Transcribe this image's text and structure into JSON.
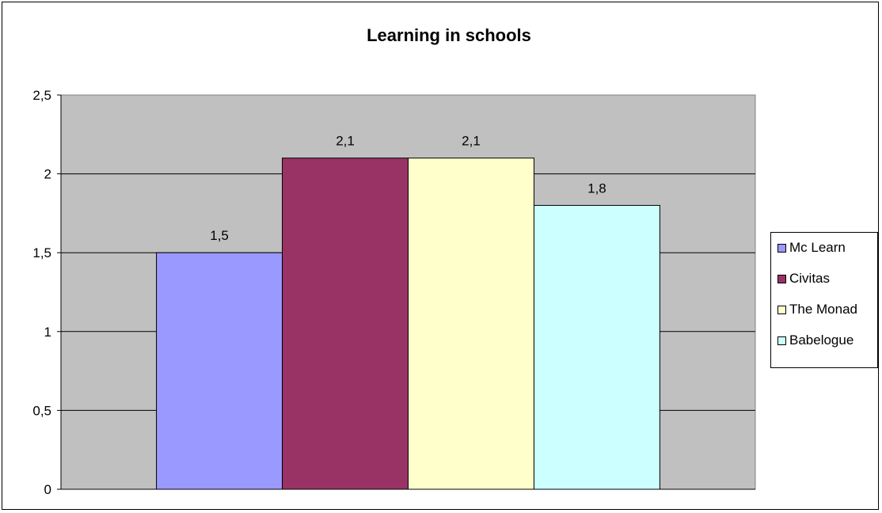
{
  "chart_data": {
    "type": "bar",
    "title": "Learning in schools",
    "categories": [
      ""
    ],
    "series": [
      {
        "name": "Mc Learn",
        "values": [
          1.5
        ],
        "value_label": "1,5",
        "color": "#9999ff"
      },
      {
        "name": "Civitas",
        "values": [
          2.1
        ],
        "value_label": "2,1",
        "color": "#993366"
      },
      {
        "name": "The Monad",
        "values": [
          2.1
        ],
        "value_label": "2,1",
        "color": "#ffffcc"
      },
      {
        "name": "Babelogue",
        "values": [
          1.8
        ],
        "value_label": "1,8",
        "color": "#ccffff"
      }
    ],
    "ylim": [
      0,
      2.5
    ],
    "y_ticks": [
      {
        "value": 0,
        "label": "0"
      },
      {
        "value": 0.5,
        "label": "0,5"
      },
      {
        "value": 1,
        "label": "1"
      },
      {
        "value": 1.5,
        "label": "1,5"
      },
      {
        "value": 2,
        "label": "2"
      },
      {
        "value": 2.5,
        "label": "2,5"
      }
    ],
    "grid": true,
    "plot_background": "#c0c0c0",
    "legend_position": "right"
  }
}
